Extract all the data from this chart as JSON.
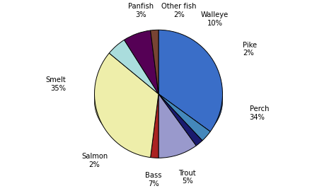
{
  "labels": [
    "Smelt",
    "Panfish",
    "Other fish",
    "Walleye",
    "Pike",
    "Perch",
    "Trout",
    "Bass",
    "Salmon"
  ],
  "values": [
    35,
    3,
    2,
    10,
    2,
    34,
    5,
    7,
    2
  ],
  "colors": [
    "#3A6EC8",
    "#4488BB",
    "#1A1A6E",
    "#9999CC",
    "#AA2222",
    "#EEEEAA",
    "#AADDDD",
    "#550055",
    "#774433"
  ],
  "startangle": 90,
  "figsize": [
    4.48,
    2.7
  ],
  "dpi": 100,
  "title": ""
}
